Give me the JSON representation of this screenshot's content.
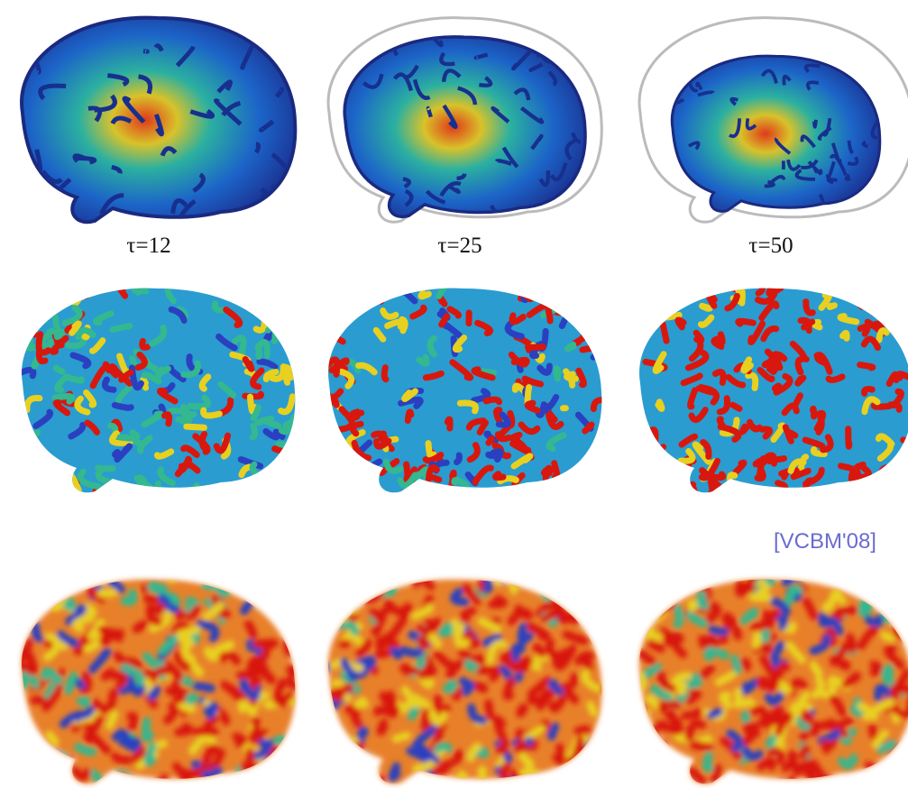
{
  "labels": [
    "τ=12",
    "τ=25",
    "τ=50"
  ],
  "citation": "[VCBM'08]"
}
